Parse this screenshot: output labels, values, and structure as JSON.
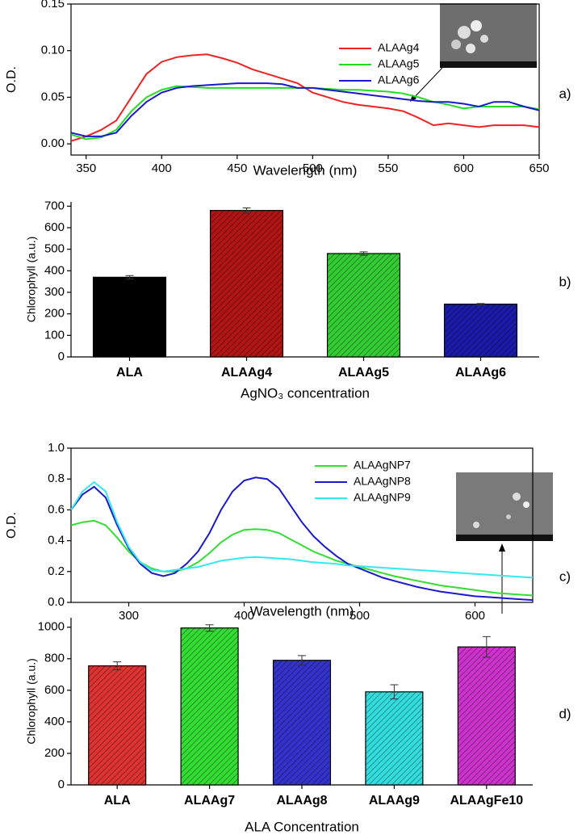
{
  "chart_data": [
    {
      "type": "line",
      "ylabel": "O.D.",
      "xlabel": "Wavelength (nm)",
      "annotation": "a)",
      "x": [
        340,
        350,
        360,
        370,
        380,
        390,
        400,
        410,
        420,
        430,
        440,
        450,
        460,
        470,
        480,
        490,
        500,
        510,
        520,
        530,
        540,
        550,
        560,
        570,
        580,
        590,
        600,
        610,
        620,
        630,
        640,
        650
      ],
      "series": [
        {
          "name": "ALAAg4",
          "color": "#ee2222",
          "values": [
            0.003,
            0.008,
            0.015,
            0.025,
            0.05,
            0.075,
            0.088,
            0.093,
            0.095,
            0.096,
            0.092,
            0.087,
            0.08,
            0.075,
            0.07,
            0.065,
            0.055,
            0.05,
            0.045,
            0.042,
            0.04,
            0.038,
            0.035,
            0.028,
            0.02,
            0.022,
            0.02,
            0.018,
            0.02,
            0.02,
            0.02,
            0.018
          ]
        },
        {
          "name": "ALAAg5",
          "color": "#22dd22",
          "values": [
            0.01,
            0.005,
            0.007,
            0.015,
            0.035,
            0.05,
            0.058,
            0.062,
            0.061,
            0.06,
            0.06,
            0.06,
            0.06,
            0.06,
            0.06,
            0.06,
            0.06,
            0.059,
            0.058,
            0.058,
            0.057,
            0.056,
            0.054,
            0.05,
            0.045,
            0.042,
            0.038,
            0.04,
            0.04,
            0.04,
            0.04,
            0.037
          ]
        },
        {
          "name": "ALAAg6",
          "color": "#1a1acc",
          "values": [
            0.012,
            0.008,
            0.008,
            0.012,
            0.03,
            0.045,
            0.055,
            0.06,
            0.062,
            0.063,
            0.064,
            0.065,
            0.065,
            0.065,
            0.064,
            0.06,
            0.06,
            0.058,
            0.056,
            0.054,
            0.052,
            0.05,
            0.048,
            0.046,
            0.045,
            0.045,
            0.043,
            0.04,
            0.045,
            0.045,
            0.04,
            0.036
          ]
        }
      ],
      "xlim": [
        340,
        650
      ],
      "xticks": [
        350,
        400,
        450,
        500,
        550,
        600,
        650
      ],
      "ylim": [
        -0.012,
        0.15
      ],
      "yticks": [
        {
          "value": 0,
          "label": "0.00"
        },
        {
          "value": 0.05,
          "label": "0.05"
        },
        {
          "value": 0.1,
          "label": "0.10"
        },
        {
          "value": 0.15,
          "label": "0.15"
        }
      ]
    },
    {
      "type": "bar",
      "ylabel": "Chlorophyll (a.u.)",
      "xlabel": "AgNO₃ concentration",
      "annotation": "b)",
      "categories": [
        "ALA",
        "ALAAg4",
        "ALAAg5",
        "ALAAg6"
      ],
      "values": [
        370,
        680,
        480,
        245
      ],
      "errors": [
        8,
        12,
        8,
        3
      ],
      "colors": [
        "#000000",
        "#b01515",
        "#33cc33",
        "#1a1aa8"
      ],
      "ylim": [
        0,
        720
      ],
      "yticks": [
        0,
        100,
        200,
        300,
        400,
        500,
        600,
        700
      ]
    },
    {
      "type": "line",
      "ylabel": "O.D.",
      "xlabel": "Wavelength (nm)",
      "annotation": "c)",
      "x": [
        250,
        260,
        270,
        280,
        290,
        300,
        310,
        320,
        330,
        340,
        350,
        360,
        370,
        380,
        390,
        400,
        410,
        420,
        430,
        440,
        450,
        460,
        470,
        480,
        490,
        500,
        510,
        520,
        530,
        540,
        550,
        560,
        570,
        580,
        590,
        600,
        610,
        620,
        630,
        640,
        650
      ],
      "series": [
        {
          "name": "ALAAgNP7",
          "color": "#33dd33",
          "values": [
            0.5,
            0.52,
            0.53,
            0.5,
            0.42,
            0.33,
            0.26,
            0.22,
            0.2,
            0.2,
            0.22,
            0.26,
            0.32,
            0.39,
            0.44,
            0.47,
            0.475,
            0.47,
            0.45,
            0.41,
            0.37,
            0.33,
            0.3,
            0.27,
            0.25,
            0.23,
            0.21,
            0.19,
            0.17,
            0.155,
            0.14,
            0.125,
            0.11,
            0.1,
            0.09,
            0.08,
            0.07,
            0.06,
            0.055,
            0.05,
            0.045
          ]
        },
        {
          "name": "ALAAgNP8",
          "color": "#1a1acc",
          "values": [
            0.6,
            0.7,
            0.75,
            0.68,
            0.5,
            0.35,
            0.25,
            0.19,
            0.17,
            0.19,
            0.25,
            0.33,
            0.45,
            0.6,
            0.72,
            0.79,
            0.81,
            0.8,
            0.74,
            0.63,
            0.52,
            0.43,
            0.36,
            0.3,
            0.25,
            0.22,
            0.19,
            0.16,
            0.14,
            0.12,
            0.1,
            0.085,
            0.07,
            0.06,
            0.05,
            0.04,
            0.035,
            0.03,
            0.025,
            0.02,
            0.015
          ]
        },
        {
          "name": "ALAAgNP9",
          "color": "#33e8ee",
          "values": [
            0.6,
            0.72,
            0.78,
            0.72,
            0.52,
            0.36,
            0.26,
            0.21,
            0.2,
            0.21,
            0.22,
            0.23,
            0.25,
            0.27,
            0.28,
            0.29,
            0.295,
            0.29,
            0.285,
            0.28,
            0.27,
            0.26,
            0.255,
            0.25,
            0.24,
            0.235,
            0.23,
            0.225,
            0.22,
            0.215,
            0.21,
            0.205,
            0.2,
            0.195,
            0.19,
            0.185,
            0.18,
            0.175,
            0.17,
            0.165,
            0.16
          ]
        }
      ],
      "xlim": [
        250,
        650
      ],
      "xticks": [
        300,
        400,
        500,
        600
      ],
      "ylim": [
        0,
        1.0
      ],
      "yticks": [
        {
          "value": 0,
          "label": "0.0"
        },
        {
          "value": 0.2,
          "label": "0.2"
        },
        {
          "value": 0.4,
          "label": "0.4"
        },
        {
          "value": 0.6,
          "label": "0.6"
        },
        {
          "value": 0.8,
          "label": "0.8"
        },
        {
          "value": 1.0,
          "label": "1.0"
        }
      ]
    },
    {
      "type": "bar",
      "ylabel": "Chlorophyll (a.u.)",
      "xlabel": "ALA Concentration",
      "annotation": "d)",
      "categories": [
        "ALA",
        "ALAAg7",
        "ALAAg8",
        "ALAAg9",
        "ALAAgFe10"
      ],
      "values": [
        755,
        995,
        790,
        590,
        875
      ],
      "errors": [
        25,
        20,
        30,
        45,
        65
      ],
      "colors": [
        "#dd3333",
        "#33dd33",
        "#3333cc",
        "#33dddd",
        "#cc33cc"
      ],
      "ylim": [
        0,
        1060
      ],
      "yticks": [
        0,
        200,
        400,
        600,
        800,
        1000
      ]
    }
  ]
}
